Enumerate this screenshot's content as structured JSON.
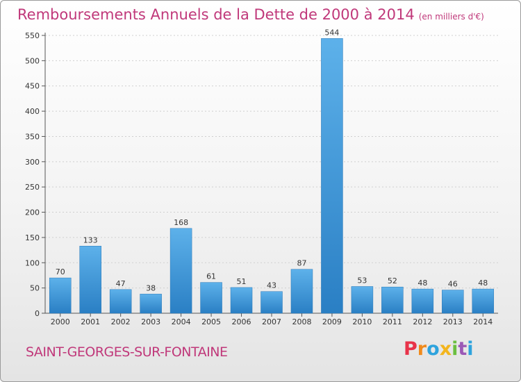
{
  "header": {
    "title": "Remboursements Annuels de la Dette de 2000 à 2014",
    "unit": "(en milliers d'€)"
  },
  "footer": {
    "commune": "SAINT-GEORGES-SUR-FONTAINE",
    "logo": [
      "P",
      "r",
      "o",
      "x",
      "i",
      "t",
      "i"
    ],
    "logo_colors": [
      "#e8334a",
      "#f08a1c",
      "#2ea3dd",
      "#f3b51d",
      "#6bbf3f",
      "#9b59b6",
      "#2ea3dd"
    ]
  },
  "chart_data": {
    "type": "bar",
    "categories": [
      "2000",
      "2001",
      "2002",
      "2003",
      "2004",
      "2005",
      "2006",
      "2007",
      "2008",
      "2009",
      "2010",
      "2011",
      "2012",
      "2013",
      "2014"
    ],
    "values": [
      70,
      133,
      47,
      38,
      168,
      61,
      51,
      43,
      87,
      544,
      53,
      52,
      48,
      46,
      48
    ],
    "title": "Remboursements Annuels de la Dette de 2000 à 2014",
    "ylim": [
      0,
      550
    ],
    "yticks": [
      0,
      50,
      100,
      150,
      200,
      250,
      300,
      350,
      400,
      450,
      500,
      550
    ],
    "grid": true,
    "bar_color": "#3a97dc",
    "data_labels": true
  }
}
